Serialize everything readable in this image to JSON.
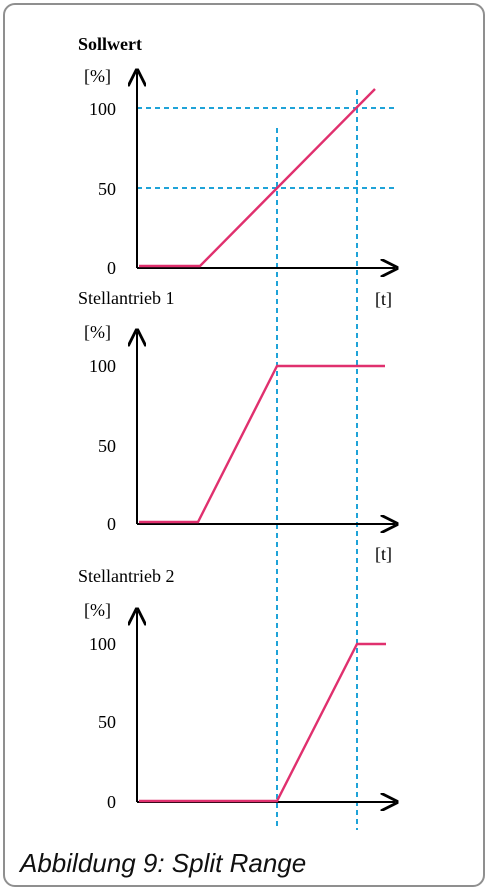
{
  "caption": "Abbildung 9: Split Range",
  "colors": {
    "signal": "#e0306e",
    "guide": "#1fa3d8",
    "axis": "#000000"
  },
  "chart_data": [
    {
      "type": "line",
      "title": "Sollwert",
      "ylabel": "[%]",
      "xlabel": "[t]",
      "yticks": [
        "100",
        "50",
        "0"
      ],
      "ylim": [
        0,
        100
      ],
      "guides_y": [
        100,
        50
      ],
      "series": [
        {
          "x": [
            0,
            0.35,
            1.4
          ],
          "values": [
            0,
            0,
            108
          ]
        }
      ]
    },
    {
      "type": "line",
      "title": "Stellantrieb 1",
      "ylabel": "[%]",
      "xlabel": "[t]",
      "yticks": [
        "100",
        "50",
        "0"
      ],
      "ylim": [
        0,
        100
      ],
      "series": [
        {
          "x": [
            0,
            0.35,
            0.85,
            1.4
          ],
          "values": [
            0,
            0,
            100,
            100
          ]
        }
      ]
    },
    {
      "type": "line",
      "title": "Stellantrieb 2",
      "ylabel": "[%]",
      "xlabel": "",
      "yticks": [
        "100",
        "50",
        "0"
      ],
      "ylim": [
        0,
        100
      ],
      "series": [
        {
          "x": [
            0,
            0.85,
            1.35,
            1.55
          ],
          "values": [
            0,
            0,
            100,
            100
          ]
        }
      ]
    }
  ]
}
